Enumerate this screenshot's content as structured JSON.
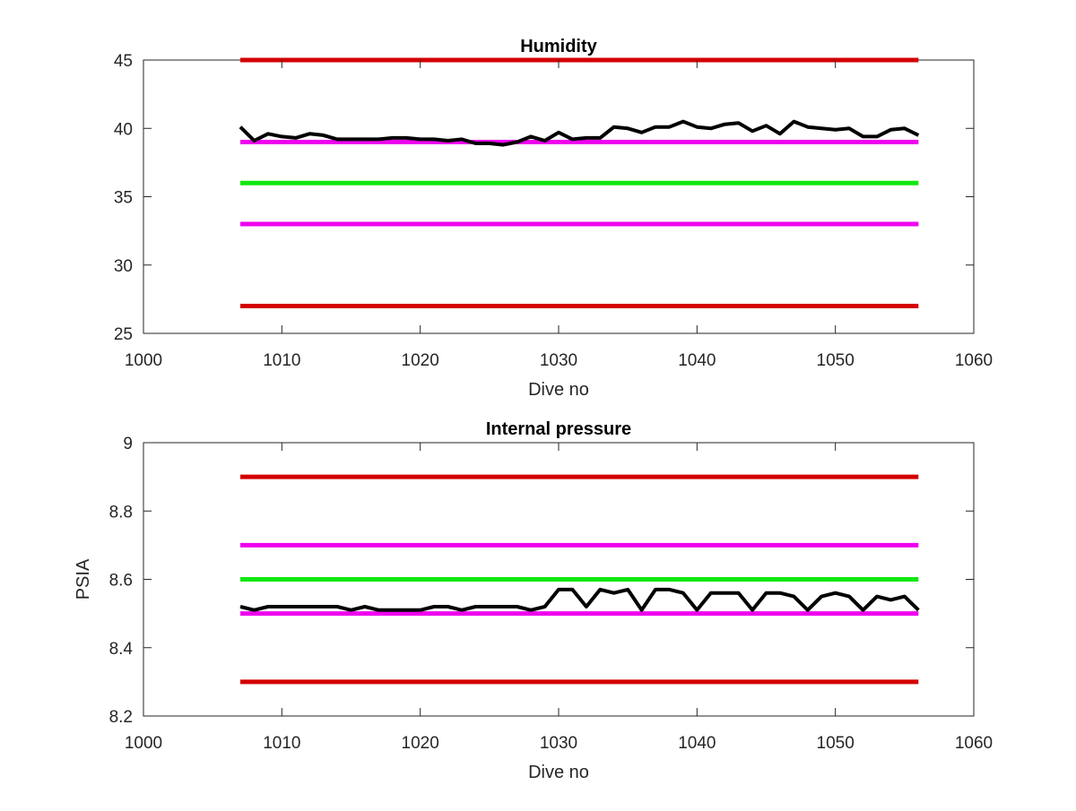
{
  "colors": {
    "red_limit": "#d40000",
    "magenta_limit": "#ee00ee",
    "green_target": "#10e810",
    "data_line": "#000000",
    "axes": "#262626"
  },
  "chart_data": [
    {
      "type": "line",
      "title": "Humidity",
      "xlabel": "Dive no",
      "ylabel": "",
      "xlim": [
        1000,
        1060
      ],
      "ylim": [
        25,
        45
      ],
      "xticks": [
        1000,
        1010,
        1020,
        1030,
        1040,
        1050,
        1060
      ],
      "yticks": [
        25,
        30,
        35,
        40,
        45
      ],
      "grid": false,
      "series": [
        {
          "color": "#000000",
          "x": [
            1007,
            1008,
            1009,
            1010,
            1011,
            1012,
            1013,
            1014,
            1015,
            1016,
            1017,
            1018,
            1019,
            1020,
            1021,
            1022,
            1023,
            1024,
            1025,
            1026,
            1027,
            1028,
            1029,
            1030,
            1031,
            1032,
            1033,
            1034,
            1035,
            1036,
            1037,
            1038,
            1039,
            1040,
            1041,
            1042,
            1043,
            1044,
            1045,
            1046,
            1047,
            1048,
            1049,
            1050,
            1051,
            1052,
            1053,
            1054,
            1055,
            1056
          ],
          "y": [
            40.1,
            39.1,
            39.6,
            39.4,
            39.3,
            39.6,
            39.5,
            39.2,
            39.2,
            39.2,
            39.2,
            39.3,
            39.3,
            39.2,
            39.2,
            39.1,
            39.2,
            38.9,
            38.9,
            38.8,
            39.0,
            39.4,
            39.1,
            39.7,
            39.2,
            39.3,
            39.3,
            40.1,
            40.0,
            39.7,
            40.1,
            40.1,
            40.5,
            40.1,
            40.0,
            40.3,
            40.4,
            39.8,
            40.2,
            39.6,
            40.5,
            40.1,
            40.0,
            39.9,
            40.0,
            39.4,
            39.4,
            39.9,
            40.0,
            39.5
          ]
        },
        {
          "color": "#d40000",
          "x": [
            1007,
            1056
          ],
          "y": [
            45,
            45
          ]
        },
        {
          "color": "#ee00ee",
          "x": [
            1007,
            1056
          ],
          "y": [
            39,
            39
          ]
        },
        {
          "color": "#10e810",
          "x": [
            1007,
            1056
          ],
          "y": [
            36,
            36
          ]
        },
        {
          "color": "#ee00ee",
          "x": [
            1007,
            1056
          ],
          "y": [
            33,
            33
          ]
        },
        {
          "color": "#d40000",
          "x": [
            1007,
            1056
          ],
          "y": [
            27,
            27
          ]
        }
      ]
    },
    {
      "type": "line",
      "title": "Internal pressure",
      "xlabel": "Dive no",
      "ylabel": "PSIA",
      "xlim": [
        1000,
        1060
      ],
      "ylim": [
        8.2,
        9
      ],
      "xticks": [
        1000,
        1010,
        1020,
        1030,
        1040,
        1050,
        1060
      ],
      "yticks": [
        8.2,
        8.4,
        8.6,
        8.8,
        9
      ],
      "yticklabels": [
        "8.2",
        "8.4",
        "8.6",
        "8.8",
        "9"
      ],
      "grid": false,
      "series": [
        {
          "color": "#000000",
          "x": [
            1007,
            1008,
            1009,
            1010,
            1011,
            1012,
            1013,
            1014,
            1015,
            1016,
            1017,
            1018,
            1019,
            1020,
            1021,
            1022,
            1023,
            1024,
            1025,
            1026,
            1027,
            1028,
            1029,
            1030,
            1031,
            1032,
            1033,
            1034,
            1035,
            1036,
            1037,
            1038,
            1039,
            1040,
            1041,
            1042,
            1043,
            1044,
            1045,
            1046,
            1047,
            1048,
            1049,
            1050,
            1051,
            1052,
            1053,
            1054,
            1055,
            1056
          ],
          "y": [
            8.52,
            8.51,
            8.52,
            8.52,
            8.52,
            8.52,
            8.52,
            8.52,
            8.51,
            8.52,
            8.51,
            8.51,
            8.51,
            8.51,
            8.52,
            8.52,
            8.51,
            8.52,
            8.52,
            8.52,
            8.52,
            8.51,
            8.52,
            8.57,
            8.57,
            8.52,
            8.57,
            8.56,
            8.57,
            8.51,
            8.57,
            8.57,
            8.56,
            8.51,
            8.56,
            8.56,
            8.56,
            8.51,
            8.56,
            8.56,
            8.55,
            8.51,
            8.55,
            8.56,
            8.55,
            8.51,
            8.55,
            8.54,
            8.55,
            8.51
          ]
        },
        {
          "color": "#d40000",
          "x": [
            1007,
            1056
          ],
          "y": [
            8.9,
            8.9
          ]
        },
        {
          "color": "#ee00ee",
          "x": [
            1007,
            1056
          ],
          "y": [
            8.7,
            8.7
          ]
        },
        {
          "color": "#10e810",
          "x": [
            1007,
            1056
          ],
          "y": [
            8.6,
            8.6
          ]
        },
        {
          "color": "#ee00ee",
          "x": [
            1007,
            1056
          ],
          "y": [
            8.5,
            8.5
          ]
        },
        {
          "color": "#d40000",
          "x": [
            1007,
            1056
          ],
          "y": [
            8.3,
            8.3
          ]
        }
      ]
    }
  ]
}
